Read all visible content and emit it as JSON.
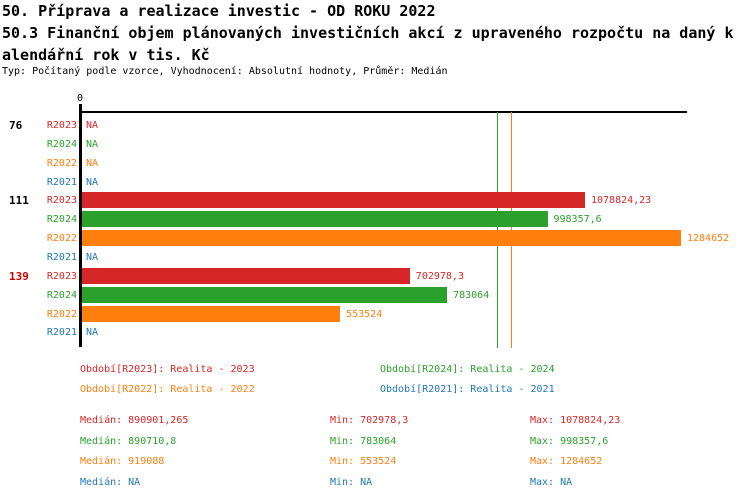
{
  "header": {
    "title_line1": "50. Příprava a realizace investic - OD ROKU 2022",
    "title_line2": "50.3 Finanční objem plánovaných investičních akcí z upraveného rozpočtu na daný k",
    "title_line3": "alendářní rok v tis. Kč",
    "subtitle": "Typ: Počítaný podle vzorce, Vyhodnocení: Absolutní hodnoty, Průměr: Medián"
  },
  "colors": {
    "R2023": "#d62728",
    "R2024": "#2ca02c",
    "R2022": "#ff7f0e",
    "R2021": "#1f77b4",
    "group_label": "#000000",
    "highlight_group": "#cc0000",
    "axis": "#000000"
  },
  "chart_data": {
    "type": "bar",
    "orientation": "horizontal",
    "unit": "tis. Kč",
    "axis": {
      "zero_label": "0",
      "xlim": [
        0,
        1297000
      ],
      "grid": false
    },
    "series": [
      "R2023",
      "R2024",
      "R2022",
      "R2021"
    ],
    "groups": [
      {
        "label": "76",
        "highlight": false,
        "values": [
          null,
          null,
          null,
          null
        ],
        "value_labels": [
          "NA",
          "NA",
          "NA",
          "NA"
        ]
      },
      {
        "label": "111",
        "highlight": false,
        "values": [
          1078824.23,
          998357.6,
          1284652,
          null
        ],
        "value_labels": [
          "1078824,23",
          "998357,6",
          "1284652",
          "NA"
        ]
      },
      {
        "label": "139",
        "highlight": true,
        "values": [
          702978.3,
          783064,
          553524,
          null
        ],
        "value_labels": [
          "702978,3",
          "783064",
          "553524",
          "NA"
        ]
      }
    ],
    "medians": {
      "R2023": 890901.265,
      "R2024": 890710.8,
      "R2022": 919088,
      "R2021": null
    }
  },
  "legend": {
    "items": [
      {
        "series": "R2023",
        "text": "Období[R2023]: Realita - 2023"
      },
      {
        "series": "R2024",
        "text": "Období[R2024]: Realita - 2024"
      },
      {
        "series": "R2022",
        "text": "Období[R2022]: Realita - 2022"
      },
      {
        "series": "R2021",
        "text": "Období[R2021]: Realita - 2021"
      }
    ]
  },
  "stats": {
    "rows": [
      {
        "series": "R2023",
        "median": "Medián: 890901,265",
        "min": "Min: 702978,3",
        "max": "Max: 1078824,23"
      },
      {
        "series": "R2024",
        "median": "Medián: 890710,8",
        "min": "Min: 783064",
        "max": "Max: 998357,6"
      },
      {
        "series": "R2022",
        "median": "Medián: 919088",
        "min": "Min: 553524",
        "max": "Max: 1284652"
      },
      {
        "series": "R2021",
        "median": "Medián: NA",
        "min": "Min: NA",
        "max": "Max: NA"
      }
    ]
  }
}
